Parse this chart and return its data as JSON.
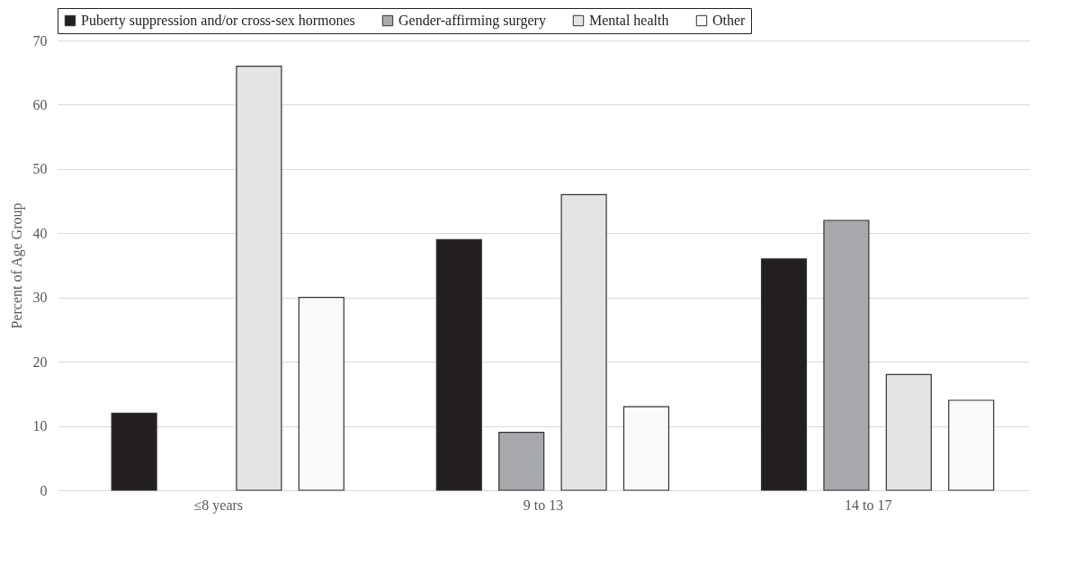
{
  "chart_data": {
    "type": "bar",
    "ylabel": "Percent of Age Group",
    "categories": [
      "≤8 years",
      "9 to 13",
      "14 to 17"
    ],
    "series": [
      {
        "name": "Puberty suppression and/or cross-sex hormones",
        "color": "#231f20",
        "values": [
          12,
          39,
          36
        ]
      },
      {
        "name": "Gender-affirming surgery",
        "color": "#a7a9ac",
        "values": [
          null,
          9,
          42
        ]
      },
      {
        "name": "Mental health",
        "color": "#e4e4e4",
        "values": [
          66,
          46,
          18
        ]
      },
      {
        "name": "Other",
        "color": "#fafafa",
        "values": [
          30,
          13,
          14
        ]
      }
    ],
    "ylim": [
      0,
      70
    ],
    "yticks": [
      0,
      10,
      20,
      30,
      40,
      50,
      60,
      70
    ],
    "grid": "y",
    "legend": "top"
  }
}
